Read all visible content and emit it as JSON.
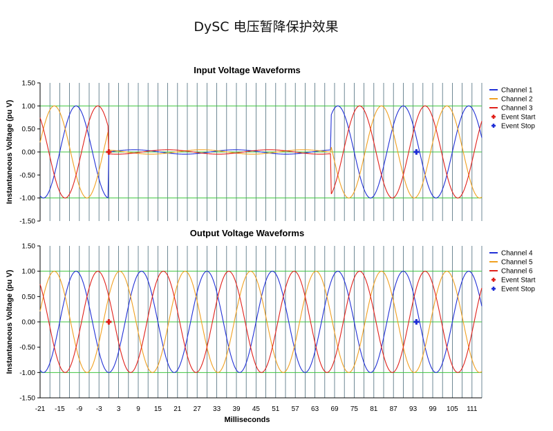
{
  "title": "DySC 电压暂降保护效果",
  "chart_data": [
    {
      "type": "line",
      "title": "Input Voltage Waveforms",
      "ylabel": "Instantaneous Voltage (pu V)",
      "xlabel": "",
      "xlim": [
        -21,
        114
      ],
      "ylim": [
        -1.5,
        1.5
      ],
      "yticks": [
        "1.50",
        "1.00",
        "0.50",
        "0.00",
        "-0.50",
        "-1.00",
        "-1.50"
      ],
      "ytick_values": [
        1.5,
        1.0,
        0.5,
        0.0,
        -0.5,
        -1.0,
        -1.5
      ],
      "grid": true,
      "legend": "right",
      "series": [
        {
          "name": "Channel 1",
          "color": "#1f2fd6",
          "phase_deg": 0
        },
        {
          "name": "Channel 2",
          "color": "#f0a020",
          "phase_deg": 120
        },
        {
          "name": "Channel 3",
          "color": "#e0201a",
          "phase_deg": -120
        }
      ],
      "sag": {
        "start_ms": 0,
        "end_ms": 68,
        "residual_pu": 0.08
      },
      "events": [
        {
          "name": "Event Start",
          "x": 0,
          "y": 0,
          "color": "#e0201a"
        },
        {
          "name": "Event Stop",
          "x": 94,
          "y": 0,
          "color": "#1f2fd6"
        }
      ]
    },
    {
      "type": "line",
      "title": "Output Voltage Waveforms",
      "ylabel": "Instantaneous Voltage (pu V)",
      "xlabel": "Milliseconds",
      "xlim": [
        -21,
        114
      ],
      "ylim": [
        -1.5,
        1.5
      ],
      "yticks": [
        "1.50",
        "1.00",
        "0.50",
        "0.00",
        "-0.50",
        "-1.00",
        "-1.50"
      ],
      "ytick_values": [
        1.5,
        1.0,
        0.5,
        0.0,
        -0.5,
        -1.0,
        -1.5
      ],
      "xticks": [
        "-21",
        "-15",
        "-9",
        "-3",
        "3",
        "9",
        "15",
        "21",
        "27",
        "33",
        "39",
        "45",
        "51",
        "57",
        "63",
        "69",
        "75",
        "81",
        "87",
        "93",
        "99",
        "105",
        "111"
      ],
      "xtick_values": [
        -21,
        -15,
        -9,
        -3,
        3,
        9,
        15,
        21,
        27,
        33,
        39,
        45,
        51,
        57,
        63,
        69,
        75,
        81,
        87,
        93,
        99,
        105,
        111
      ],
      "grid": true,
      "legend": "right",
      "series": [
        {
          "name": "Channel 4",
          "color": "#1f2fd6",
          "phase_deg": 0
        },
        {
          "name": "Channel 5",
          "color": "#f0a020",
          "phase_deg": 120
        },
        {
          "name": "Channel 6",
          "color": "#e0201a",
          "phase_deg": -120
        }
      ],
      "events": [
        {
          "name": "Event Start",
          "x": 0,
          "y": 0,
          "color": "#e0201a"
        },
        {
          "name": "Event Stop",
          "x": 94,
          "y": 0,
          "color": "#1f2fd6"
        }
      ]
    }
  ]
}
